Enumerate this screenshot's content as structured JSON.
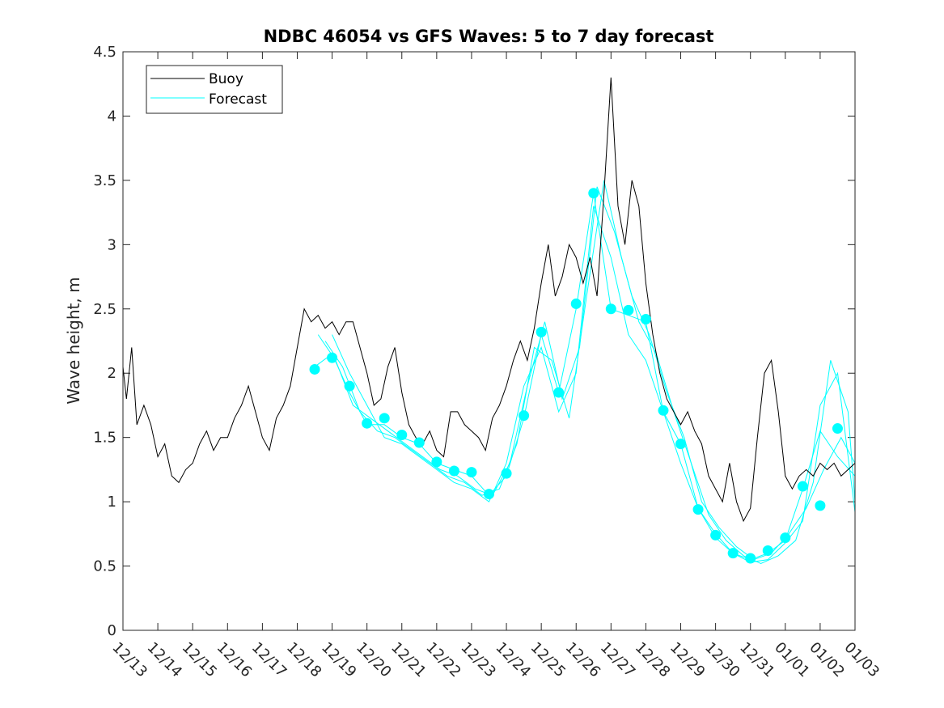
{
  "chart_data": {
    "type": "line",
    "title": "NDBC 46054 vs GFS Waves: 5 to 7 day forecast",
    "xlabel": "",
    "ylabel": "Wave height, m",
    "xlim": [
      0,
      21
    ],
    "ylim": [
      0,
      4.5
    ],
    "yticks": [
      0,
      0.5,
      1,
      1.5,
      2,
      2.5,
      3,
      3.5,
      4,
      4.5
    ],
    "ytick_labels": [
      "0",
      "0.5",
      "1",
      "1.5",
      "2",
      "2.5",
      "3",
      "3.5",
      "4",
      "4.5"
    ],
    "xtick_labels": [
      "12/13",
      "12/14",
      "12/15",
      "12/16",
      "12/17",
      "12/18",
      "12/19",
      "12/20",
      "12/21",
      "12/22",
      "12/23",
      "12/24",
      "12/25",
      "12/26",
      "12/27",
      "12/28",
      "12/29",
      "12/30",
      "12/31",
      "01/01",
      "01/02",
      "01/03"
    ],
    "grid": false,
    "legend": {
      "position": "top-left",
      "entries": [
        "Buoy",
        "Forecast"
      ]
    },
    "colors": {
      "buoy": "#000000",
      "forecast": "#00ffff"
    },
    "buoy": {
      "name": "Buoy",
      "x": [
        0,
        0.1,
        0.25,
        0.4,
        0.6,
        0.8,
        1.0,
        1.2,
        1.4,
        1.6,
        1.8,
        2.0,
        2.2,
        2.4,
        2.6,
        2.8,
        3.0,
        3.2,
        3.4,
        3.6,
        3.8,
        4.0,
        4.2,
        4.4,
        4.6,
        4.8,
        5.0,
        5.2,
        5.4,
        5.6,
        5.8,
        6.0,
        6.2,
        6.4,
        6.6,
        6.8,
        7.0,
        7.2,
        7.4,
        7.6,
        7.8,
        8.0,
        8.2,
        8.4,
        8.6,
        8.8,
        9.0,
        9.2,
        9.4,
        9.6,
        9.8,
        10.0,
        10.2,
        10.4,
        10.6,
        10.8,
        11.0,
        11.2,
        11.4,
        11.6,
        11.8,
        12.0,
        12.2,
        12.4,
        12.6,
        12.8,
        13.0,
        13.2,
        13.4,
        13.6,
        13.8,
        14.0,
        14.2,
        14.4,
        14.6,
        14.8,
        15.0,
        15.2,
        15.4,
        15.6,
        15.8,
        16.0,
        16.2,
        16.4,
        16.6,
        16.8,
        17.0,
        17.2,
        17.4,
        17.6,
        17.8,
        18.0,
        18.2,
        18.4,
        18.6,
        18.8,
        19.0,
        19.2,
        19.4,
        19.6,
        19.8,
        20.0,
        20.2,
        20.4,
        20.6,
        20.8,
        21.0
      ],
      "values": [
        2.05,
        1.8,
        2.2,
        1.6,
        1.75,
        1.6,
        1.35,
        1.45,
        1.2,
        1.15,
        1.25,
        1.3,
        1.45,
        1.55,
        1.4,
        1.5,
        1.5,
        1.65,
        1.75,
        1.9,
        1.7,
        1.5,
        1.4,
        1.65,
        1.75,
        1.9,
        2.2,
        2.5,
        2.4,
        2.45,
        2.35,
        2.4,
        2.3,
        2.4,
        2.4,
        2.2,
        2.0,
        1.75,
        1.8,
        2.05,
        2.2,
        1.85,
        1.6,
        1.5,
        1.45,
        1.55,
        1.4,
        1.35,
        1.7,
        1.7,
        1.6,
        1.55,
        1.5,
        1.4,
        1.65,
        1.75,
        1.9,
        2.1,
        2.25,
        2.1,
        2.35,
        2.7,
        3.0,
        2.6,
        2.75,
        3.0,
        2.9,
        2.7,
        2.9,
        2.6,
        3.4,
        4.3,
        3.3,
        3.0,
        3.5,
        3.3,
        2.7,
        2.3,
        2.0,
        1.8,
        1.7,
        1.6,
        1.7,
        1.55,
        1.45,
        1.2,
        1.1,
        1.0,
        1.3,
        1.0,
        0.85,
        0.95,
        1.5,
        2.0,
        2.1,
        1.7,
        1.2,
        1.1,
        1.2,
        1.25,
        1.2,
        1.3,
        1.25,
        1.3,
        1.2,
        1.25,
        1.3
      ]
    },
    "forecasts": [
      {
        "name": "Forecast 1",
        "x": [
          5.5,
          6.0,
          6.5,
          7.0,
          7.5,
          8.0,
          8.5,
          9.0,
          9.5,
          10.0,
          10.5,
          11.0,
          11.5,
          12.0,
          12.5,
          13.0,
          13.5,
          14.0,
          14.5,
          15.0,
          15.5,
          16.0,
          16.5,
          17.0,
          17.5,
          18.0,
          18.5,
          19.0,
          19.5,
          20.0,
          20.5,
          21.0
        ],
        "values": [
          2.05,
          2.15,
          1.85,
          1.6,
          1.6,
          1.5,
          1.45,
          1.3,
          1.25,
          1.2,
          1.05,
          1.2,
          1.65,
          2.3,
          1.85,
          2.5,
          3.4,
          2.5,
          2.45,
          2.4,
          1.7,
          1.45,
          0.95,
          0.75,
          0.6,
          0.55,
          0.6,
          0.7,
          1.1,
          1.55,
          1.35,
          1.2
        ]
      },
      {
        "name": "Forecast 2",
        "x": [
          5.6,
          6.1,
          6.6,
          7.1,
          7.6,
          8.1,
          8.6,
          9.1,
          9.6,
          10.1,
          10.6,
          11.1,
          11.6,
          12.1,
          12.6,
          13.1,
          13.6,
          14.1,
          14.6,
          15.1,
          15.6,
          16.1,
          16.6,
          17.1,
          17.6,
          18.1,
          18.6,
          19.1,
          19.6,
          20.1,
          20.6,
          21.0
        ],
        "values": [
          2.3,
          2.1,
          1.75,
          1.65,
          1.55,
          1.45,
          1.35,
          1.25,
          1.2,
          1.1,
          1.05,
          1.3,
          1.9,
          2.4,
          1.8,
          2.2,
          3.45,
          3.1,
          2.6,
          2.3,
          1.85,
          1.5,
          1.0,
          0.8,
          0.65,
          0.55,
          0.6,
          0.75,
          0.95,
          1.25,
          1.5,
          1.3
        ]
      },
      {
        "name": "Forecast 3",
        "x": [
          5.8,
          6.3,
          6.8,
          7.3,
          7.8,
          8.3,
          8.8,
          9.3,
          9.8,
          10.3,
          10.8,
          11.3,
          11.8,
          12.3,
          12.8,
          13.3,
          13.8,
          14.3,
          14.8,
          15.3,
          15.8,
          16.3,
          16.8,
          17.3,
          17.8,
          18.3,
          18.8,
          19.3,
          19.8,
          20.3,
          20.8,
          21.0
        ],
        "values": [
          2.25,
          2.05,
          1.7,
          1.55,
          1.5,
          1.4,
          1.3,
          1.2,
          1.15,
          1.05,
          1.1,
          1.45,
          2.2,
          2.1,
          1.65,
          2.6,
          3.5,
          2.9,
          2.4,
          2.15,
          1.7,
          1.3,
          0.9,
          0.7,
          0.58,
          0.52,
          0.58,
          0.7,
          1.15,
          2.1,
          1.7,
          1.0
        ]
      },
      {
        "name": "Forecast 4",
        "x": [
          6.0,
          6.5,
          7.0,
          7.5,
          8.0,
          8.5,
          9.0,
          9.5,
          10.0,
          10.5,
          11.0,
          11.5,
          12.0,
          12.5,
          13.0,
          13.5,
          14.0,
          14.5,
          15.0,
          15.5,
          16.0,
          16.5,
          17.0,
          17.5,
          18.0,
          18.5,
          19.0,
          19.5,
          20.0,
          20.5,
          21.0
        ],
        "values": [
          2.3,
          2.0,
          1.75,
          1.5,
          1.45,
          1.35,
          1.25,
          1.15,
          1.1,
          1.0,
          1.3,
          1.9,
          2.2,
          1.7,
          2.0,
          3.3,
          2.9,
          2.3,
          2.1,
          1.7,
          1.3,
          0.95,
          0.72,
          0.6,
          0.53,
          0.55,
          0.68,
          0.85,
          1.75,
          2.0,
          0.92
        ]
      }
    ],
    "forecast_markers": {
      "x": [
        5.5,
        6.0,
        6.5,
        7.0,
        7.5,
        8.0,
        8.5,
        9.0,
        9.5,
        10.0,
        10.5,
        11.0,
        11.5,
        12.0,
        12.5,
        13.0,
        13.5,
        14.0,
        14.5,
        15.0,
        15.5,
        16.0,
        16.5,
        17.0,
        17.5,
        18.0,
        18.5,
        19.0,
        19.5,
        20.0,
        20.5
      ],
      "values": [
        2.03,
        2.12,
        1.9,
        1.61,
        1.65,
        1.52,
        1.46,
        1.31,
        1.24,
        1.23,
        1.06,
        1.22,
        1.67,
        2.32,
        1.85,
        2.54,
        3.4,
        2.5,
        2.49,
        2.42,
        1.71,
        1.45,
        0.94,
        0.74,
        0.6,
        0.56,
        0.62,
        0.72,
        1.12,
        0.97,
        1.57
      ]
    }
  }
}
